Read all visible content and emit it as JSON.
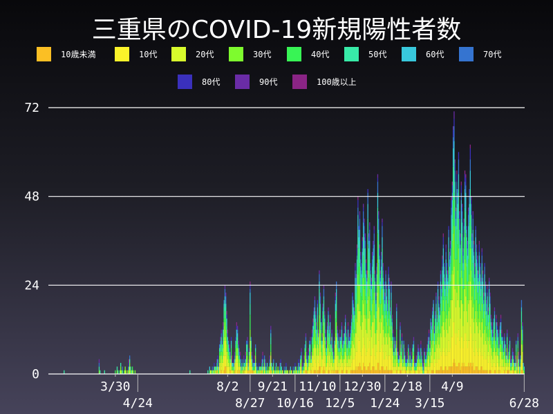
{
  "title": "三重県のCOVID-19新規陽性者数",
  "chart_data": {
    "type": "bar",
    "stacked": true,
    "title": "三重県のCOVID-19新規陽性者数",
    "xlabel": "",
    "ylabel": "",
    "ylim": [
      0,
      72
    ],
    "yticks": [
      "0",
      "24",
      "48",
      "72"
    ],
    "ytick_values": [
      0,
      24,
      48,
      72
    ],
    "grid": "horizontal",
    "legend_position": "top",
    "x_start": "2020-01-16",
    "x_end": "2021-06-28",
    "xticks": [
      {
        "label": "3/30",
        "date": "2020-03-30"
      },
      {
        "label": "4/24",
        "date": "2020-04-24"
      },
      {
        "label": "8/2",
        "date": "2020-08-02"
      },
      {
        "label": "8/27",
        "date": "2020-08-27"
      },
      {
        "label": "9/21",
        "date": "2020-09-21"
      },
      {
        "label": "10/16",
        "date": "2020-10-16"
      },
      {
        "label": "11/10",
        "date": "2020-11-10"
      },
      {
        "label": "12/5",
        "date": "2020-12-05"
      },
      {
        "label": "12/30",
        "date": "2020-12-30"
      },
      {
        "label": "1/24",
        "date": "2021-01-24"
      },
      {
        "label": "2/18",
        "date": "2021-02-18"
      },
      {
        "label": "3/15",
        "date": "2021-03-15"
      },
      {
        "label": "4/9",
        "date": "2021-04-09"
      },
      {
        "label": "6/28",
        "date": "2021-06-28"
      }
    ],
    "series": [
      {
        "name": "10歳未満",
        "color": "#fbbf24"
      },
      {
        "name": "10代",
        "color": "#fbf32a"
      },
      {
        "name": "20代",
        "color": "#d8fb2c"
      },
      {
        "name": "30代",
        "color": "#7efb2e"
      },
      {
        "name": "40代",
        "color": "#38f455"
      },
      {
        "name": "50代",
        "color": "#38eba8"
      },
      {
        "name": "60代",
        "color": "#38c8dc"
      },
      {
        "name": "70代",
        "color": "#3574d0"
      },
      {
        "name": "80代",
        "color": "#3a30bc"
      },
      {
        "name": "90代",
        "color": "#6a2ca6"
      },
      {
        "name": "100歳以上",
        "color": "#8a2485"
      }
    ],
    "daily_totals": [
      0,
      0,
      0,
      0,
      0,
      0,
      0,
      0,
      0,
      0,
      0,
      0,
      0,
      0,
      0,
      0,
      0,
      1,
      0,
      0,
      0,
      0,
      0,
      0,
      0,
      0,
      0,
      0,
      0,
      0,
      0,
      0,
      0,
      0,
      0,
      0,
      0,
      0,
      0,
      0,
      0,
      0,
      0,
      0,
      0,
      0,
      0,
      0,
      0,
      0,
      0,
      0,
      0,
      0,
      0,
      0,
      4,
      1,
      0,
      0,
      0,
      0,
      1,
      0,
      0,
      0,
      0,
      0,
      0,
      0,
      0,
      0,
      0,
      0,
      1,
      0,
      2,
      1,
      0,
      1,
      3,
      1,
      2,
      0,
      1,
      2,
      1,
      0,
      1,
      4,
      5,
      2,
      1,
      2,
      1,
      0,
      1,
      0,
      0,
      0,
      0,
      0,
      0,
      0,
      0,
      0,
      0,
      0,
      0,
      0,
      0,
      0,
      0,
      0,
      0,
      0,
      0,
      0,
      0,
      0,
      0,
      0,
      0,
      0,
      0,
      0,
      0,
      0,
      0,
      0,
      0,
      0,
      0,
      0,
      0,
      0,
      0,
      0,
      0,
      0,
      0,
      0,
      0,
      0,
      0,
      0,
      0,
      0,
      0,
      0,
      0,
      0,
      0,
      0,
      0,
      0,
      0,
      1,
      0,
      0,
      0,
      0,
      0,
      0,
      0,
      0,
      0,
      0,
      0,
      0,
      0,
      0,
      0,
      0,
      0,
      0,
      0,
      1,
      0,
      2,
      1,
      1,
      2,
      1,
      3,
      2,
      2,
      4,
      5,
      3,
      8,
      10,
      12,
      9,
      14,
      20,
      24,
      22,
      17,
      12,
      9,
      8,
      6,
      10,
      5,
      3,
      4,
      6,
      10,
      14,
      13,
      9,
      7,
      6,
      3,
      4,
      2,
      5,
      3,
      6,
      9,
      10,
      4,
      7,
      25,
      10,
      6,
      4,
      3,
      5,
      8,
      3,
      2,
      1,
      3,
      2,
      2,
      4,
      6,
      3,
      5,
      4,
      2,
      3,
      1,
      2,
      5,
      13,
      3,
      2,
      4,
      1,
      2,
      3,
      1,
      2,
      1,
      3,
      4,
      2,
      1,
      0,
      2,
      1,
      3,
      1,
      1,
      0,
      1,
      2,
      1,
      0,
      2,
      1,
      3,
      2,
      1,
      2,
      4,
      3,
      5,
      7,
      3,
      2,
      5,
      8,
      11,
      6,
      4,
      7,
      9,
      10,
      6,
      12,
      15,
      18,
      21,
      17,
      14,
      20,
      12,
      28,
      22,
      15,
      11,
      19,
      24,
      17,
      12,
      9,
      14,
      18,
      13,
      16,
      10,
      12,
      8,
      6,
      10,
      22,
      25,
      13,
      11,
      8,
      12,
      10,
      14,
      9,
      11,
      13,
      16,
      12,
      9,
      14,
      11,
      10,
      13,
      16,
      22,
      20,
      18,
      30,
      27,
      35,
      48,
      40,
      44,
      33,
      30,
      37,
      46,
      42,
      38,
      31,
      28,
      50,
      38,
      41,
      30,
      26,
      33,
      36,
      40,
      28,
      22,
      30,
      54,
      44,
      35,
      28,
      33,
      42,
      30,
      25,
      22,
      28,
      24,
      20,
      29,
      26,
      18,
      25,
      16,
      12,
      8,
      10,
      9,
      19,
      7,
      6,
      5,
      14,
      8,
      11,
      6,
      9,
      7,
      5,
      4,
      6,
      8,
      5,
      7,
      4,
      6,
      8,
      10,
      4,
      3,
      5,
      6,
      8,
      7,
      5,
      9,
      6,
      4,
      3,
      7,
      6,
      5,
      8,
      10,
      12,
      9,
      15,
      14,
      18,
      20,
      13,
      17,
      22,
      16,
      25,
      21,
      18,
      28,
      24,
      32,
      38,
      30,
      26,
      35,
      30,
      28,
      40,
      33,
      36,
      48,
      52,
      67,
      71,
      58,
      45,
      55,
      50,
      60,
      44,
      38,
      52,
      46,
      34,
      42,
      55,
      54,
      40,
      36,
      45,
      50,
      62,
      48,
      38,
      44,
      36,
      30,
      40,
      35,
      32,
      28,
      36,
      30,
      26,
      34,
      28,
      22,
      30,
      25,
      20,
      24,
      18,
      26,
      22,
      16,
      14,
      12,
      15,
      18,
      11,
      16,
      14,
      12,
      9,
      14,
      16,
      12,
      10,
      8,
      11,
      9,
      7,
      12,
      6,
      8,
      10,
      5,
      4,
      7,
      6,
      3,
      5,
      9,
      4,
      11,
      6,
      3,
      5,
      20,
      14,
      3,
      2
    ]
  }
}
